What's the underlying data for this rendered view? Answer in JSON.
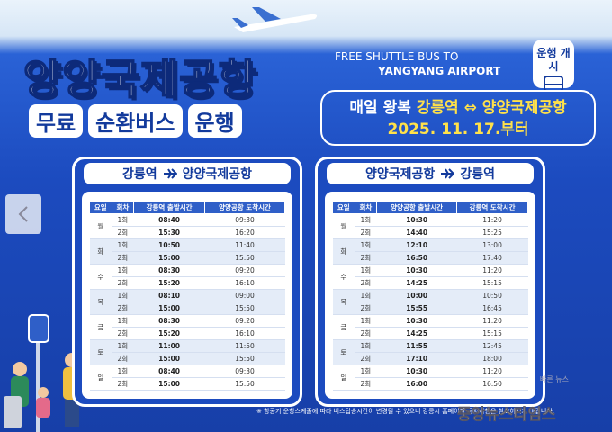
{
  "header": {
    "title": "양양국제공항",
    "subtitle": [
      "무료",
      "순환버스",
      "운행"
    ],
    "english_line1": "FREE SHUTTLE BUS TO",
    "english_line2": "YANGYANG AIRPORT",
    "badge": "운행 개시",
    "info_prefix": "매일 왕복",
    "info_route": "강릉역 ⇔ 양양국제공항",
    "info_date": "2025. 11. 17.부터"
  },
  "tables": [
    {
      "from": "강릉역",
      "to": "양양국제공항",
      "headers": [
        "요일",
        "회차",
        "강릉역 출발시간",
        "양양공항 도착시간"
      ],
      "days": [
        {
          "day": "월",
          "rows": [
            [
              "1회",
              "08:40",
              "09:30"
            ],
            [
              "2회",
              "15:30",
              "16:20"
            ]
          ]
        },
        {
          "day": "화",
          "rows": [
            [
              "1회",
              "10:50",
              "11:40"
            ],
            [
              "2회",
              "15:00",
              "15:50"
            ]
          ]
        },
        {
          "day": "수",
          "rows": [
            [
              "1회",
              "08:30",
              "09:20"
            ],
            [
              "2회",
              "15:20",
              "16:10"
            ]
          ]
        },
        {
          "day": "목",
          "rows": [
            [
              "1회",
              "08:10",
              "09:00"
            ],
            [
              "2회",
              "15:00",
              "15:50"
            ]
          ]
        },
        {
          "day": "금",
          "rows": [
            [
              "1회",
              "08:30",
              "09:20"
            ],
            [
              "2회",
              "15:20",
              "16:10"
            ]
          ]
        },
        {
          "day": "토",
          "rows": [
            [
              "1회",
              "11:00",
              "11:50"
            ],
            [
              "2회",
              "15:00",
              "15:50"
            ]
          ]
        },
        {
          "day": "일",
          "rows": [
            [
              "1회",
              "08:40",
              "09:30"
            ],
            [
              "2회",
              "15:00",
              "15:50"
            ]
          ]
        }
      ]
    },
    {
      "from": "양양국제공항",
      "to": "강릉역",
      "headers": [
        "요일",
        "회차",
        "양양공항 출발시간",
        "강릉역 도착시간"
      ],
      "days": [
        {
          "day": "월",
          "rows": [
            [
              "1회",
              "10:30",
              "11:20"
            ],
            [
              "2회",
              "14:40",
              "15:25"
            ]
          ]
        },
        {
          "day": "화",
          "rows": [
            [
              "1회",
              "12:10",
              "13:00"
            ],
            [
              "2회",
              "16:50",
              "17:40"
            ]
          ]
        },
        {
          "day": "수",
          "rows": [
            [
              "1회",
              "10:30",
              "11:20"
            ],
            [
              "2회",
              "14:25",
              "15:15"
            ]
          ]
        },
        {
          "day": "목",
          "rows": [
            [
              "1회",
              "10:00",
              "10:50"
            ],
            [
              "2회",
              "15:55",
              "16:45"
            ]
          ]
        },
        {
          "day": "금",
          "rows": [
            [
              "1회",
              "10:30",
              "11:20"
            ],
            [
              "2회",
              "14:25",
              "15:15"
            ]
          ]
        },
        {
          "day": "토",
          "rows": [
            [
              "1회",
              "11:55",
              "12:45"
            ],
            [
              "2회",
              "17:10",
              "18:00"
            ]
          ]
        },
        {
          "day": "일",
          "rows": [
            [
              "1회",
              "10:30",
              "11:20"
            ],
            [
              "2회",
              "16:00",
              "16:50"
            ]
          ]
        }
      ]
    }
  ],
  "footnote": "※ 항공기 운항스케줄에 따라 버스탑승시간이 변경될 수 있으니 강릉시 홈페이지 공지사항을 참고하시기 바랍니다.",
  "watermark": {
    "tagline": "빠른 뉴스",
    "name": "중앙뉴스타임스"
  }
}
